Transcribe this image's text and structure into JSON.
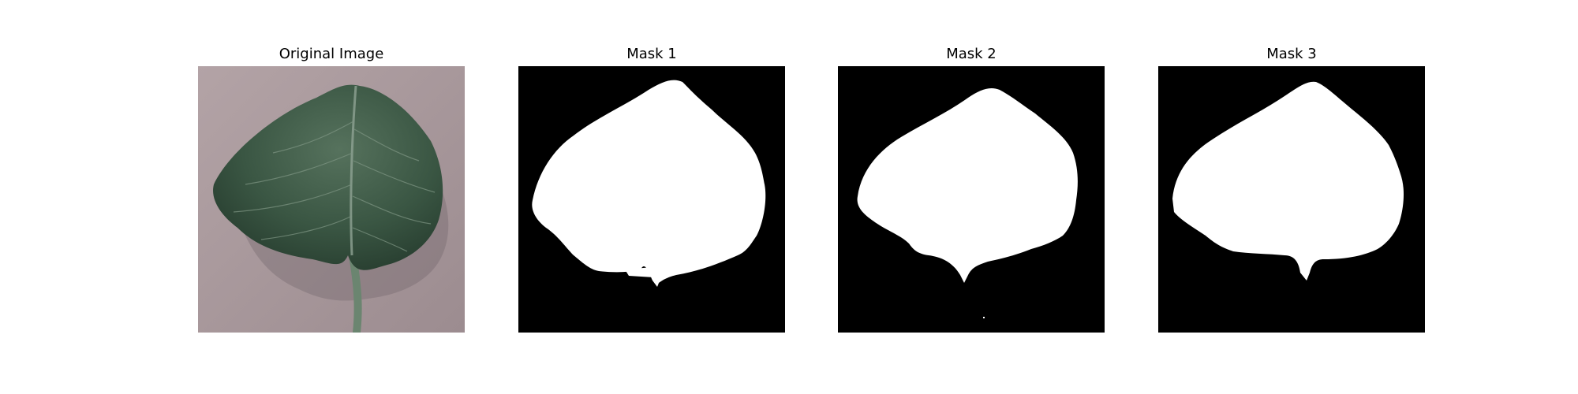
{
  "panels": [
    {
      "title": "Original Image",
      "content": "leaf photograph"
    },
    {
      "title": "Mask 1",
      "content": "binary segmentation mask"
    },
    {
      "title": "Mask 2",
      "content": "binary segmentation mask"
    },
    {
      "title": "Mask 3",
      "content": "binary segmentation mask"
    }
  ],
  "colors": {
    "mask_fg": "#ffffff",
    "mask_bg": "#000000",
    "leaf": "#3c5a45",
    "surface": "#a99a9e"
  }
}
